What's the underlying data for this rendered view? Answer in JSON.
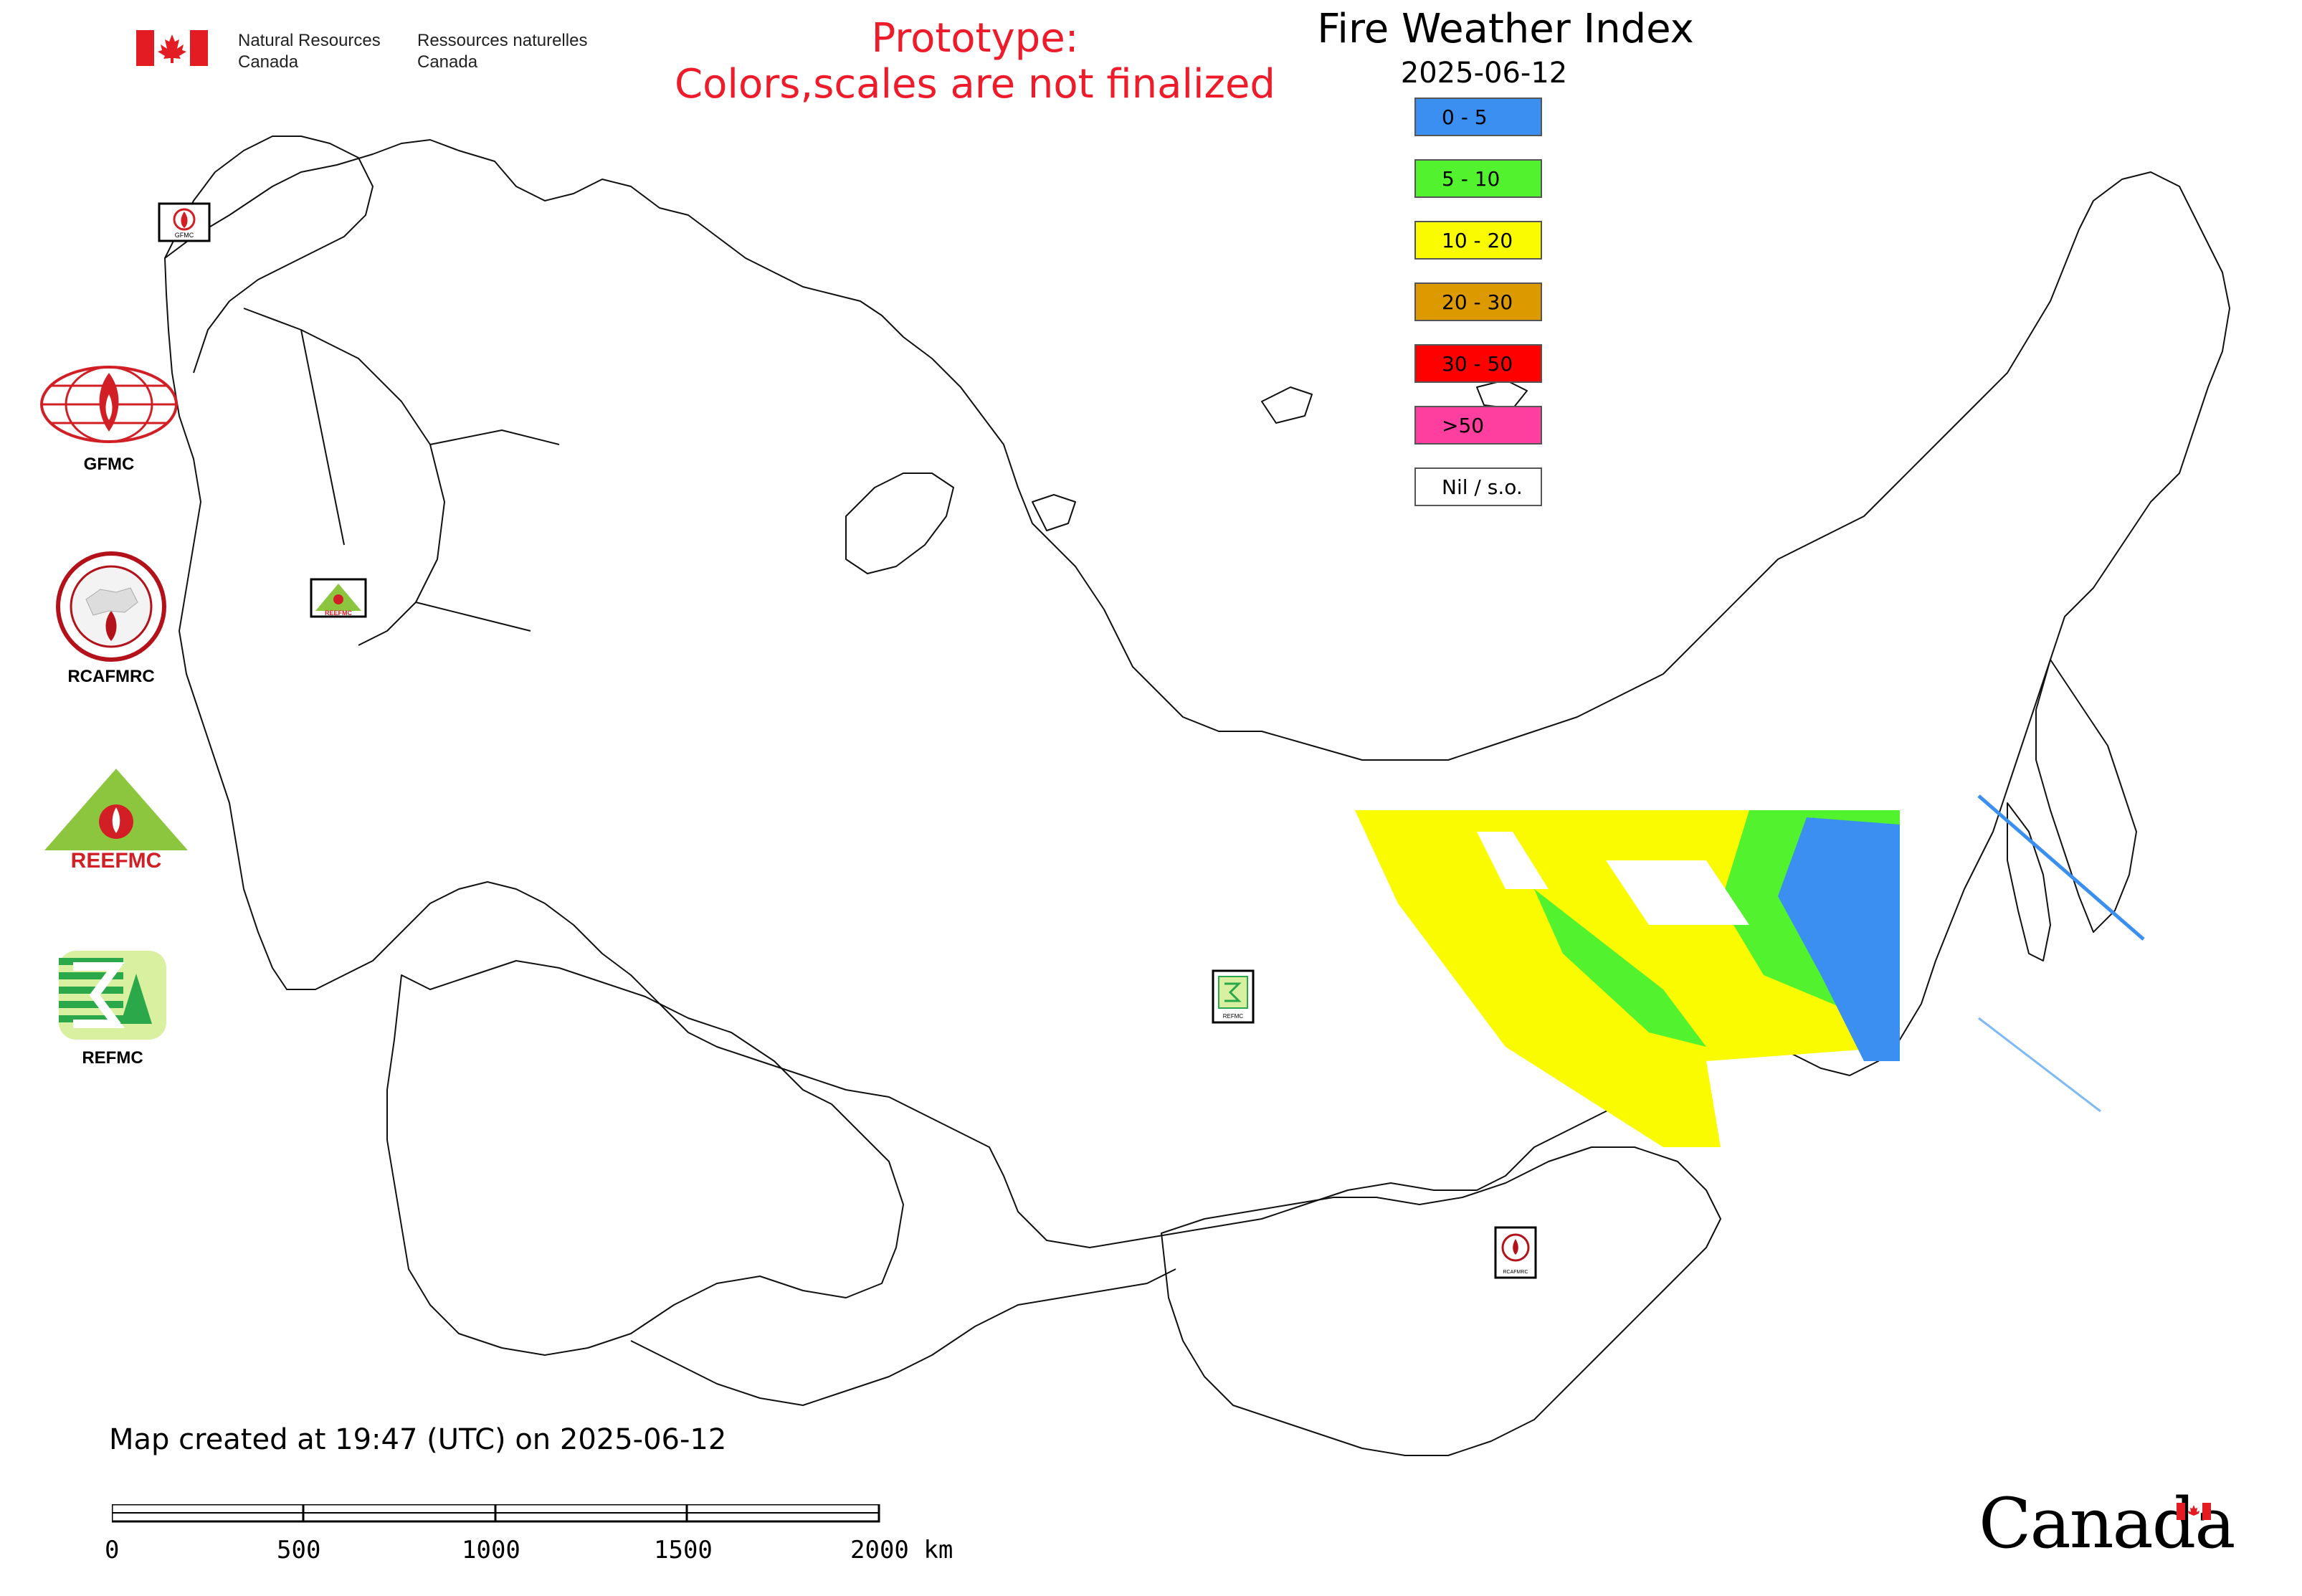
{
  "header": {
    "department_en": [
      "Natural Resources",
      "Canada"
    ],
    "department_fr": [
      "Ressources naturelles",
      "Canada"
    ]
  },
  "prototype_note": [
    "Prototype:",
    "Colors,scales are not finalized"
  ],
  "map": {
    "title": "Fire Weather Index",
    "date": "2025-06-12",
    "created_note": "Map created at 19:47 (UTC) on 2025-06-12"
  },
  "legend": {
    "items": [
      {
        "label": "0 - 5",
        "color": "#3a8ff0"
      },
      {
        "label": "5 - 10",
        "color": "#52f22e"
      },
      {
        "label": "10 - 20",
        "color": "#fbfb00"
      },
      {
        "label": "20 - 30",
        "color": "#dc9a00"
      },
      {
        "label": "30 - 50",
        "color": "#ff0000"
      },
      {
        "label": ">50",
        "color": "#ff3fa0"
      },
      {
        "label": "Nil / s.o.",
        "color": "#ffffff"
      }
    ]
  },
  "agencies": [
    {
      "name": "GFMC",
      "icon": "gfmc-logo-icon",
      "color": "#d21f26"
    },
    {
      "name": "RCAFMRC",
      "icon": "rcafmrc-logo-icon",
      "color": "#b3121b"
    },
    {
      "name": "",
      "wordmark": "REEFMC",
      "icon": "reefmc-logo-icon",
      "color": "#8cc63f"
    },
    {
      "name": "REFMC",
      "icon": "refmc-logo-icon",
      "color": "#2aa84a"
    }
  ],
  "map_markers": [
    "GFMC",
    "REEFMC",
    "REFMC",
    "RCAFMRC"
  ],
  "scale_bar": {
    "ticks": [
      "0",
      "500",
      "1000",
      "1500",
      "2000 km"
    ]
  },
  "footer": {
    "wordmark": "Canada"
  }
}
